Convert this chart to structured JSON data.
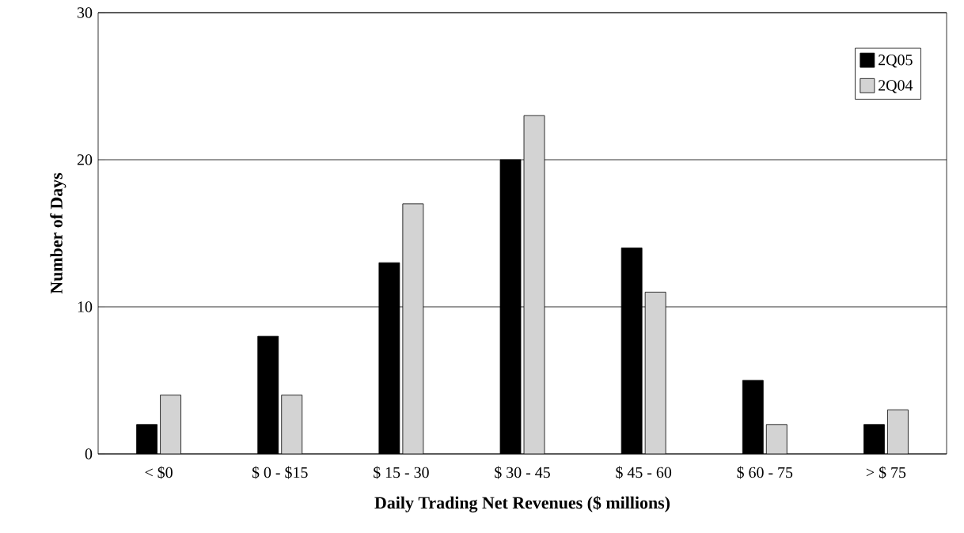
{
  "chart_data": {
    "type": "bar",
    "xlabel": "Daily Trading Net Revenues ($ millions)",
    "ylabel": "Number of Days",
    "categories": [
      "< $0",
      "$ 0 - $15",
      "$ 15 - 30",
      "$ 30 - 45",
      "$ 45 - 60",
      "$ 60 - 75",
      "> $ 75"
    ],
    "series": [
      {
        "name": "2Q05",
        "color": "#000000",
        "values": [
          2,
          8,
          13,
          20,
          14,
          5,
          2
        ]
      },
      {
        "name": "2Q04",
        "color": "#d3d3d3",
        "values": [
          4,
          4,
          17,
          23,
          11,
          2,
          3
        ]
      }
    ],
    "ylim": [
      0,
      30
    ],
    "yticks": [
      0,
      10,
      20,
      30
    ],
    "grid": "y",
    "legend": "top right"
  }
}
